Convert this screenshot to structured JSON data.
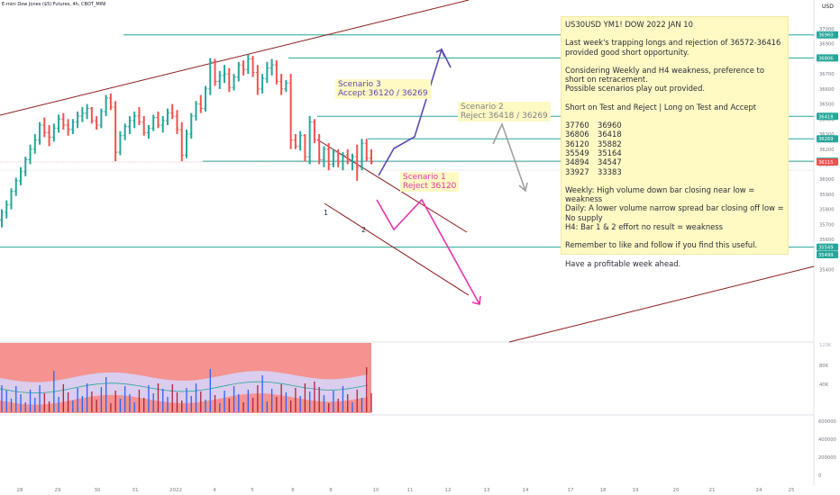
{
  "symbol_label": "E-mini Dow Jones ($5) Futures, 4h, CBOT_MINI",
  "currency": "USD",
  "chart_data": {
    "type": "candlestick",
    "price_ticks": [
      "37000",
      "36900",
      "36800",
      "36700",
      "36600",
      "36500",
      "36400",
      "36300",
      "36200",
      "36100",
      "36000",
      "35900",
      "35800",
      "35700",
      "35600",
      "35500",
      "35400"
    ],
    "volume_ticks": [
      "80K",
      "40K"
    ],
    "volume_top_tick": "120K",
    "lower_ticks": [
      "600000",
      "400000",
      "200000",
      "0"
    ],
    "price_badges": [
      {
        "label": "36960",
        "price": 36960,
        "color": "#26a69a"
      },
      {
        "label": "36806",
        "price": 36806,
        "color": "#26a69a"
      },
      {
        "label": "36418",
        "price": 36418,
        "color": "#26a69a"
      },
      {
        "label": "36269",
        "price": 36269,
        "color": "#26a69a"
      },
      {
        "label": "36120",
        "price": 36120,
        "color": "#26a69a"
      },
      {
        "label": "36115",
        "price": 36115,
        "color": "#ef5350"
      },
      {
        "label": "35549",
        "price": 35549,
        "color": "#26a69a"
      },
      {
        "label": "35499",
        "price": 35499,
        "color": "#26a69a"
      }
    ],
    "date_ticks": [
      "28",
      "29",
      "30",
      "31",
      "2022",
      "4",
      "5",
      "6",
      "7",
      "8",
      "10",
      "11",
      "12",
      "13",
      "14",
      "17",
      "18",
      "19",
      "20",
      "21",
      "24",
      "25"
    ],
    "bars": [
      [
        35730,
        35800,
        35680,
        35780
      ],
      [
        35780,
        35860,
        35740,
        35830
      ],
      [
        35830,
        35940,
        35800,
        35920
      ],
      [
        35920,
        36010,
        35890,
        35990
      ],
      [
        35990,
        36080,
        35960,
        36050
      ],
      [
        36050,
        36150,
        36020,
        36130
      ],
      [
        36130,
        36230,
        36100,
        36200
      ],
      [
        36200,
        36300,
        36170,
        36260
      ],
      [
        36260,
        36380,
        36230,
        36360
      ],
      [
        36360,
        36410,
        36280,
        36310
      ],
      [
        36310,
        36360,
        36220,
        36280
      ],
      [
        36280,
        36370,
        36250,
        36340
      ],
      [
        36340,
        36430,
        36310,
        36400
      ],
      [
        36400,
        36440,
        36330,
        36360
      ],
      [
        36360,
        36400,
        36290,
        36330
      ],
      [
        36330,
        36400,
        36300,
        36380
      ],
      [
        36380,
        36450,
        36340,
        36420
      ],
      [
        36420,
        36480,
        36380,
        36440
      ],
      [
        36440,
        36500,
        36400,
        36470
      ],
      [
        36470,
        36480,
        36370,
        36390
      ],
      [
        36390,
        36420,
        36330,
        36360
      ],
      [
        36360,
        36470,
        36340,
        36450
      ],
      [
        36450,
        36560,
        36420,
        36540
      ],
      [
        36540,
        36570,
        36460,
        36480
      ],
      [
        36480,
        36520,
        36120,
        36180
      ],
      [
        36180,
        36320,
        36160,
        36290
      ],
      [
        36290,
        36370,
        36260,
        36350
      ],
      [
        36350,
        36420,
        36300,
        36390
      ],
      [
        36390,
        36450,
        36340,
        36420
      ],
      [
        36420,
        36480,
        36360,
        36380
      ],
      [
        36380,
        36420,
        36290,
        36310
      ],
      [
        36310,
        36360,
        36270,
        36340
      ],
      [
        36340,
        36430,
        36320,
        36410
      ],
      [
        36410,
        36450,
        36340,
        36360
      ],
      [
        36360,
        36420,
        36310,
        36390
      ],
      [
        36390,
        36470,
        36360,
        36440
      ],
      [
        36440,
        36500,
        36400,
        36420
      ],
      [
        36420,
        36460,
        36300,
        36330
      ],
      [
        36330,
        36380,
        36120,
        36160
      ],
      [
        36160,
        36330,
        36140,
        36300
      ],
      [
        36300,
        36440,
        36270,
        36420
      ],
      [
        36420,
        36520,
        36390,
        36500
      ],
      [
        36500,
        36560,
        36440,
        36470
      ],
      [
        36470,
        36620,
        36450,
        36600
      ],
      [
        36600,
        36806,
        36560,
        36780
      ],
      [
        36780,
        36800,
        36620,
        36650
      ],
      [
        36650,
        36720,
        36600,
        36690
      ],
      [
        36690,
        36760,
        36640,
        36700
      ],
      [
        36700,
        36740,
        36580,
        36610
      ],
      [
        36610,
        36700,
        36590,
        36680
      ],
      [
        36680,
        36780,
        36650,
        36760
      ],
      [
        36760,
        36790,
        36690,
        36730
      ],
      [
        36730,
        36830,
        36700,
        36800
      ],
      [
        36800,
        36820,
        36680,
        36710
      ],
      [
        36710,
        36760,
        36560,
        36600
      ],
      [
        36600,
        36700,
        36570,
        36670
      ],
      [
        36670,
        36780,
        36640,
        36740
      ],
      [
        36740,
        36800,
        36690,
        36760
      ],
      [
        36760,
        36790,
        36630,
        36650
      ],
      [
        36650,
        36700,
        36560,
        36600
      ],
      [
        36600,
        36660,
        36580,
        36640
      ],
      [
        36640,
        36700,
        36200,
        36260
      ],
      [
        36260,
        36300,
        36200,
        36220
      ],
      [
        36220,
        36320,
        36190,
        36290
      ],
      [
        36290,
        36300,
        36120,
        36150
      ],
      [
        36150,
        36420,
        36100,
        36380
      ],
      [
        36380,
        36400,
        36240,
        36260
      ],
      [
        36260,
        36300,
        36100,
        36130
      ],
      [
        36130,
        36220,
        36080,
        36200
      ],
      [
        36200,
        36240,
        36060,
        36100
      ],
      [
        36100,
        36200,
        36080,
        36180
      ],
      [
        36180,
        36200,
        36080,
        36120
      ],
      [
        36120,
        36180,
        36060,
        36160
      ],
      [
        36160,
        36200,
        36100,
        36120
      ],
      [
        36120,
        36170,
        36060,
        36150
      ],
      [
        36150,
        36230,
        35990,
        36080
      ],
      [
        36080,
        36269,
        36060,
        36240
      ],
      [
        36240,
        36269,
        36120,
        36140
      ],
      [
        36140,
        36200,
        36100,
        36115
      ]
    ],
    "volume_band": [
      {
        "name": "",
        "color": "#f4938f"
      }
    ]
  },
  "note": {
    "title": "US30USD YM1! DOW 2022 JAN 10",
    "p1": "Last week's trapping longs and rejection of 36572-36416 provided good short opportunity.",
    "p2": "Considering Weekly and H4 weakness, preference to short on retracement.",
    "p3": "Possible scenarios play out provided.",
    "p4": "Short on Test and Reject   |   Long on Test and Accept",
    "levels": [
      [
        "37760",
        "36960"
      ],
      [
        "36806",
        "36418"
      ],
      [
        "36120",
        "35882"
      ],
      [
        "35549",
        "35164"
      ],
      [
        "34894",
        "34547"
      ],
      [
        "33927",
        "33383"
      ]
    ],
    "weekly": "Weekly: High volume down bar closing near low = weakness",
    "daily": "Daily: A lower volume narrow spread bar closing off low = No supply",
    "h4": "H4: Bar 1 & 2 effort no result = weakness",
    "p5": "Remember to like and follow if you find this useful.",
    "p6": "Have a profitable week ahead."
  },
  "scenarios": {
    "s3_title": "Scenario 3",
    "s3_text": "Accept  36120 / 36269",
    "s2_title": "Scenario 2",
    "s2_text": "Reject 36418 / 36269",
    "s1_title": "Scenario 1",
    "s1_text": "Reject 36120"
  },
  "bar_labels": {
    "one": "1",
    "two": "2"
  },
  "colors": {
    "up": "#26a69a",
    "down": "#ef5350",
    "trend": "#8b1a1a",
    "level": "#26a69a",
    "scenario3": "#5b49b0",
    "scenario2": "#a0a0a0",
    "scenario1": "#e535ab"
  }
}
